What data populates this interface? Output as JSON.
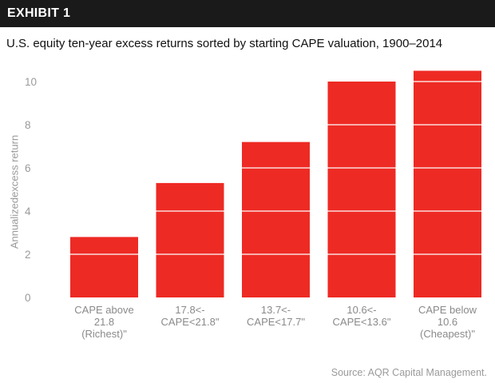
{
  "header": {
    "exhibit_label": "EXHIBIT 1"
  },
  "footer": {
    "source": "Source: AQR Capital Management."
  },
  "colors": {
    "bar": "#ee2a24",
    "header_bg": "#1a1a1a",
    "gridline": "#ffffff",
    "axis_text": "#9a9a9a"
  },
  "chart_data": {
    "type": "bar",
    "title": "U.S. equity ten-year excess returns sorted by starting CAPE valuation, 1900–2014",
    "xlabel": "",
    "ylabel": "Annualizedexcess return",
    "ylim": [
      0,
      10.5
    ],
    "yticks": [
      0,
      2,
      4,
      6,
      8,
      10
    ],
    "grid": "white lines across bars",
    "categories": [
      [
        "CAPE above",
        "21.8",
        "(Richest)\""
      ],
      [
        "17.8<-",
        "CAPE<21.8\""
      ],
      [
        "13.7<-",
        "CAPE<17.7\""
      ],
      [
        "10.6<-",
        "CAPE<13.6\""
      ],
      [
        "CAPE below",
        "10.6",
        "(Cheapest)\""
      ]
    ],
    "values": [
      2.8,
      5.3,
      7.2,
      10.0,
      10.5
    ]
  }
}
